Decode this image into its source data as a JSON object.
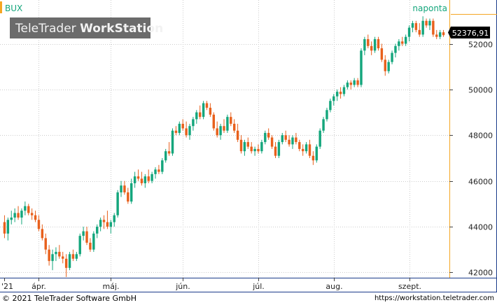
{
  "header": {
    "symbol": "BUX",
    "brand_regular": "TeleTrader ",
    "brand_bold": "WorkStation",
    "period": "naponta"
  },
  "last_price_label": "52376,91",
  "footer": {
    "copyright": "© 2021 TeleTrader Software GmbH",
    "url": "https://workstation.teletrader.com"
  },
  "colors": {
    "up": "#14a67c",
    "down": "#e8601c",
    "grid": "#cccccc",
    "accent": "#f5a623",
    "axis_frame": "#1a3a8a",
    "banner_bg": "#6b6b6b"
  },
  "chart_data": {
    "type": "candlestick",
    "title": "BUX",
    "y_ticks": [
      42000,
      44000,
      46000,
      48000,
      50000,
      52000
    ],
    "y_tick_labels": [
      "42000",
      "44000",
      "46000",
      "48000",
      "50000",
      "52000"
    ],
    "ylim": [
      41800,
      53300
    ],
    "x_tick_labels": [
      {
        "label": "'21",
        "index": 0
      },
      {
        "label": "ápr.",
        "index": 10
      },
      {
        "label": "máj.",
        "index": 31
      },
      {
        "label": "jún.",
        "index": 52
      },
      {
        "label": "júl.",
        "index": 74
      },
      {
        "label": "aug.",
        "index": 96
      },
      {
        "label": "szept.",
        "index": 118
      }
    ],
    "candles": [
      [
        44200,
        44500,
        43500,
        43700
      ],
      [
        43700,
        44400,
        43400,
        44300
      ],
      [
        44300,
        44700,
        44100,
        44400
      ],
      [
        44400,
        44800,
        44200,
        44600
      ],
      [
        44600,
        44900,
        44300,
        44400
      ],
      [
        44400,
        44800,
        44100,
        44700
      ],
      [
        44700,
        45100,
        44500,
        44900
      ],
      [
        44900,
        45000,
        44500,
        44600
      ],
      [
        44600,
        44800,
        44300,
        44500
      ],
      [
        44500,
        44700,
        44200,
        44300
      ],
      [
        44300,
        44500,
        43800,
        43900
      ],
      [
        43900,
        44100,
        43400,
        43500
      ],
      [
        43500,
        43700,
        42800,
        43000
      ],
      [
        43000,
        43200,
        42300,
        42500
      ],
      [
        42500,
        43000,
        42100,
        42800
      ],
      [
        42800,
        43100,
        42500,
        42900
      ],
      [
        42900,
        43200,
        42600,
        42700
      ],
      [
        42700,
        42900,
        42400,
        42600
      ],
      [
        42600,
        42800,
        41800,
        42200
      ],
      [
        42200,
        42900,
        42100,
        42800
      ],
      [
        42800,
        43000,
        42500,
        42600
      ],
      [
        42600,
        42900,
        42500,
        42800
      ],
      [
        42800,
        43700,
        42700,
        43600
      ],
      [
        43600,
        44000,
        43400,
        43800
      ],
      [
        43800,
        44000,
        43200,
        43300
      ],
      [
        43300,
        43500,
        42900,
        43000
      ],
      [
        43000,
        43800,
        42900,
        43700
      ],
      [
        43700,
        44100,
        43500,
        44000
      ],
      [
        44000,
        44400,
        43800,
        44300
      ],
      [
        44300,
        44500,
        43900,
        44200
      ],
      [
        44200,
        44700,
        43900,
        44000
      ],
      [
        44000,
        44300,
        43700,
        44200
      ],
      [
        44200,
        44600,
        44000,
        44500
      ],
      [
        44500,
        45600,
        44400,
        45500
      ],
      [
        45500,
        46000,
        45300,
        45800
      ],
      [
        45800,
        46000,
        45400,
        45500
      ],
      [
        45500,
        45700,
        45000,
        45100
      ],
      [
        45100,
        46100,
        45000,
        45900
      ],
      [
        45900,
        46400,
        45700,
        46200
      ],
      [
        46200,
        46500,
        46000,
        46100
      ],
      [
        46100,
        46400,
        45800,
        45900
      ],
      [
        45900,
        46300,
        45700,
        46200
      ],
      [
        46200,
        46500,
        45900,
        46000
      ],
      [
        46000,
        46400,
        45900,
        46300
      ],
      [
        46300,
        46600,
        46100,
        46500
      ],
      [
        46500,
        46700,
        46300,
        46400
      ],
      [
        46400,
        47000,
        46300,
        46900
      ],
      [
        46900,
        47400,
        46800,
        47300
      ],
      [
        47300,
        47700,
        47100,
        47200
      ],
      [
        47200,
        48300,
        47100,
        48200
      ],
      [
        48200,
        48400,
        48000,
        48100
      ],
      [
        48100,
        48600,
        48000,
        48500
      ],
      [
        48500,
        48700,
        48200,
        48300
      ],
      [
        48300,
        48600,
        47900,
        48000
      ],
      [
        48000,
        48500,
        47800,
        48400
      ],
      [
        48400,
        48800,
        48200,
        48700
      ],
      [
        48700,
        49100,
        48500,
        49000
      ],
      [
        49000,
        49300,
        48700,
        48800
      ],
      [
        48800,
        49500,
        48700,
        49400
      ],
      [
        49400,
        49500,
        49100,
        49200
      ],
      [
        49200,
        49400,
        48800,
        48900
      ],
      [
        48900,
        49000,
        48200,
        48300
      ],
      [
        48300,
        48600,
        47900,
        48000
      ],
      [
        48000,
        48500,
        47800,
        48400
      ],
      [
        48400,
        48700,
        48100,
        48200
      ],
      [
        48200,
        48900,
        48100,
        48800
      ],
      [
        48800,
        49000,
        48400,
        48500
      ],
      [
        48500,
        48700,
        48100,
        48200
      ],
      [
        48200,
        48500,
        47700,
        47800
      ],
      [
        47800,
        48000,
        47200,
        47300
      ],
      [
        47300,
        47800,
        47100,
        47700
      ],
      [
        47700,
        47900,
        47400,
        47500
      ],
      [
        47500,
        47700,
        47200,
        47300
      ],
      [
        47300,
        47500,
        47100,
        47400
      ],
      [
        47400,
        47600,
        47200,
        47300
      ],
      [
        47300,
        47800,
        47200,
        47700
      ],
      [
        47700,
        48200,
        47600,
        48100
      ],
      [
        48100,
        48300,
        47800,
        47900
      ],
      [
        47900,
        48000,
        47400,
        47500
      ],
      [
        47500,
        47700,
        47000,
        47100
      ],
      [
        47100,
        47800,
        47000,
        47700
      ],
      [
        47700,
        48100,
        47600,
        48000
      ],
      [
        48000,
        48200,
        47700,
        47800
      ],
      [
        47800,
        48000,
        47500,
        47600
      ],
      [
        47600,
        48000,
        47400,
        47900
      ],
      [
        47900,
        48100,
        47600,
        47700
      ],
      [
        47700,
        47800,
        47300,
        47400
      ],
      [
        47400,
        47600,
        47100,
        47300
      ],
      [
        47300,
        47700,
        47200,
        47600
      ],
      [
        47600,
        47800,
        47000,
        47100
      ],
      [
        47100,
        47300,
        46700,
        46900
      ],
      [
        46900,
        47600,
        46800,
        47500
      ],
      [
        47500,
        48300,
        47400,
        48200
      ],
      [
        48200,
        48800,
        48100,
        48700
      ],
      [
        48700,
        49200,
        48600,
        49100
      ],
      [
        49100,
        49600,
        49000,
        49500
      ],
      [
        49500,
        49800,
        49300,
        49700
      ],
      [
        49700,
        50000,
        49500,
        49900
      ],
      [
        49900,
        50100,
        49600,
        49800
      ],
      [
        49800,
        50200,
        49700,
        50100
      ],
      [
        50100,
        50400,
        50000,
        50300
      ],
      [
        50300,
        50400,
        50000,
        50200
      ],
      [
        50200,
        50500,
        50100,
        50400
      ],
      [
        50400,
        50500,
        50100,
        50200
      ],
      [
        50200,
        51800,
        50100,
        51700
      ],
      [
        51700,
        52300,
        51500,
        52200
      ],
      [
        52200,
        52400,
        51800,
        51900
      ],
      [
        51900,
        52100,
        51500,
        51700
      ],
      [
        51700,
        52300,
        51600,
        52200
      ],
      [
        52200,
        52300,
        51700,
        51800
      ],
      [
        51800,
        52000,
        51200,
        51300
      ],
      [
        51300,
        51500,
        50600,
        50800
      ],
      [
        50800,
        51300,
        50700,
        51200
      ],
      [
        51200,
        51700,
        51100,
        51600
      ],
      [
        51600,
        52000,
        51400,
        51900
      ],
      [
        51900,
        52200,
        51700,
        52100
      ],
      [
        52100,
        52300,
        51900,
        52000
      ],
      [
        52000,
        52400,
        51900,
        52300
      ],
      [
        52300,
        52800,
        52100,
        52700
      ],
      [
        52700,
        53000,
        52500,
        52900
      ],
      [
        52900,
        53000,
        52500,
        52600
      ],
      [
        52600,
        52900,
        52300,
        52400
      ],
      [
        52400,
        53200,
        52300,
        53000
      ],
      [
        53000,
        53100,
        52700,
        52800
      ],
      [
        52800,
        53100,
        52600,
        53000
      ],
      [
        53000,
        53100,
        52300,
        52400
      ],
      [
        52400,
        52600,
        52200,
        52300
      ],
      [
        52300,
        52600,
        52200,
        52500
      ],
      [
        52500,
        52600,
        52300,
        52377
      ]
    ]
  }
}
